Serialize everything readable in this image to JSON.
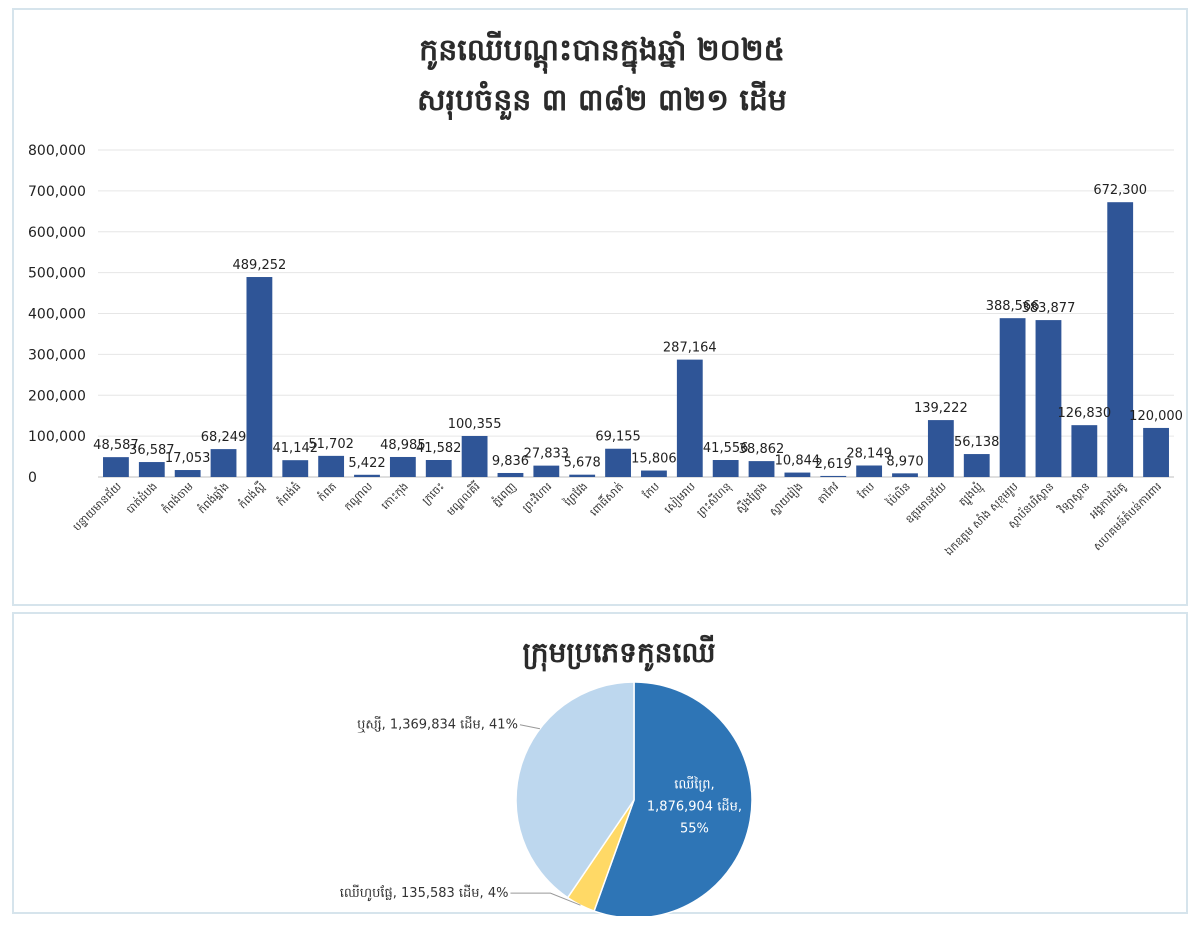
{
  "bar_chart": {
    "title_line1": "កូនឈើបណ្ដុះបានក្នុងឆ្នាំ ២០២៥",
    "title_line2": "សរុបចំនួន ៣ ៣៨២ ៣២១ ដើម"
  },
  "pie_chart": {
    "title": "ក្រុមប្រភេទកូនឈើ"
  },
  "colors": {
    "bar": "#2f5597",
    "pie_forest": "#2e75b6",
    "pie_fruit": "#ffd966",
    "pie_bamboo": "#bdd7ee"
  },
  "chart_data": [
    {
      "type": "bar",
      "title": "កូនឈើបណ្ដុះបានក្នុងឆ្នាំ ២០២៥ សរុបចំនួន ៣ ៣៨២ ៣២១ ដើម",
      "ylim": [
        0,
        800000
      ],
      "yticks": [
        "0",
        "100,000",
        "200,000",
        "300,000",
        "400,000",
        "500,000",
        "600,000",
        "700,000",
        "800,000"
      ],
      "grid": true,
      "legend": "none",
      "categories": [
        "បន្ទាយមានជ័យ",
        "បាត់ដំបង",
        "កំពង់ចាម",
        "កំពង់ឆ្នាំង",
        "កំពង់ស្ពឺ",
        "កំពង់ធំ",
        "កំពត",
        "កណ្ដាល",
        "កោះកុង",
        "ក្រចេះ",
        "មណ្ឌលគិរី",
        "ភ្នំពេញ",
        "ព្រះវិហារ",
        "ព្រៃវែង",
        "ពោធិ៍សាត់",
        "កែប",
        "សៀមរាប",
        "ព្រះសីហនុ",
        "ស្ទឹងត្រែង",
        "ស្វាយរៀង",
        "តាកែវ",
        "កែប",
        "ប៉ៃលិន",
        "ឧត្តរមានជ័យ",
        "ត្បូងឃ្មុំ",
        "ឯកឧត្តម សាំង សុខុមរូប",
        "ស្ថាប័នបរិស្ថាន",
        "វិទ្យាស្ថាន",
        "អង្គការដៃគូ",
        "សហគមន៍តំបន់ការពារ"
      ],
      "values": [
        48587,
        36587,
        17053,
        68249,
        489252,
        41142,
        51702,
        5422,
        48985,
        41582,
        100355,
        9836,
        27833,
        5678,
        69155,
        15806,
        287164,
        41556,
        38862,
        10844,
        2619,
        28149,
        8970,
        139222,
        56138,
        388566,
        383877,
        126830,
        672300,
        120000
      ],
      "data_labels": [
        "48,587",
        "36,587",
        "17,053",
        "68,249",
        "489,252",
        "41,142",
        "51,702",
        "5,422",
        "48,985",
        "41,582",
        "100,355",
        "9,836",
        "27,833",
        "5,678",
        "69,155",
        "15,806",
        "287,164",
        "41,556",
        "38,862",
        "10,844",
        "2,619",
        "28,149",
        "8,970",
        "139,222",
        "56,138",
        "388,566",
        "383,877",
        "126,830",
        "672,300",
        "120,000"
      ]
    },
    {
      "type": "pie",
      "title": "ក្រុមប្រភេទកូនឈើ",
      "slices": [
        {
          "name": "ឈើព្រៃ",
          "value": 1876904,
          "percent": 55,
          "label": "ឈើព្រៃ, 1,876,904 ដើម, 55%"
        },
        {
          "name": "ឈើហូបផ្លែ",
          "value": 135583,
          "percent": 4,
          "label": "ឈើហូបផ្លែ, 135,583 ដើម, 4%"
        },
        {
          "name": "ឬស្សី",
          "value": 1369834,
          "percent": 41,
          "label": "ឬស្សី, 1,369,834 ដើម, 41%"
        }
      ]
    }
  ]
}
